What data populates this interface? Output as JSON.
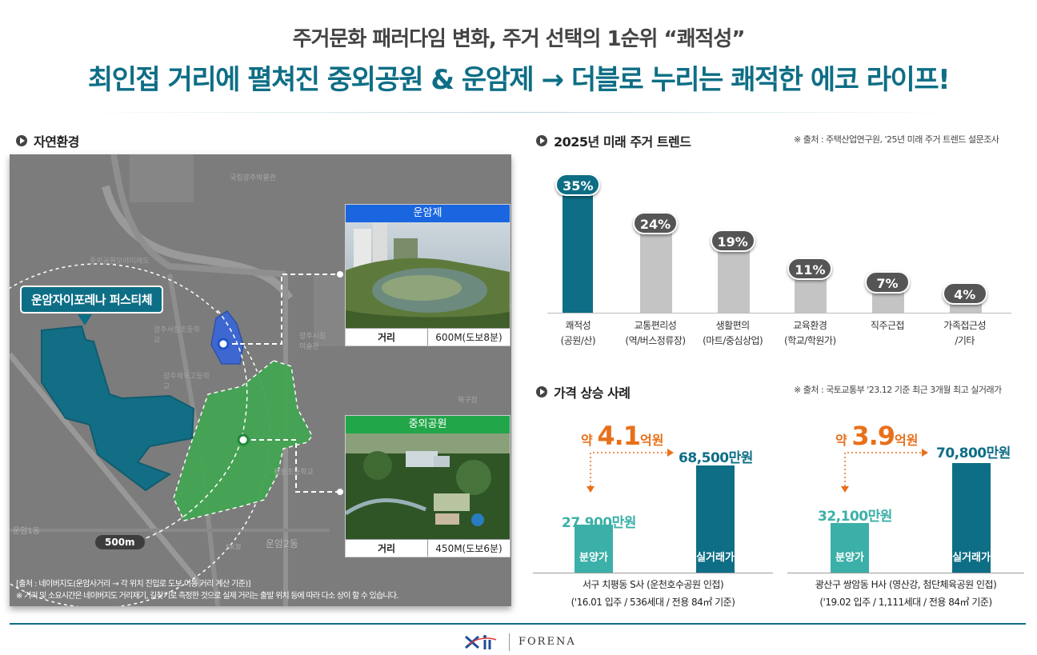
{
  "header": {
    "subtitle": "주거문화 패러다임 변화, 주거 선택의 1순위 “쾌적성”",
    "title": "최인접 거리에 펼쳐진 중외공원 & 운암제 → 더블로 누리는 쾌적한 에코 라이프!"
  },
  "nature": {
    "heading": "자연환경",
    "site_label": "운암자이포레나 퍼스티체",
    "radius_label": "500m",
    "photos": [
      {
        "title": "운암제",
        "dist_label": "거리",
        "dist_value": "600M(도보8분)",
        "color": "#1a66e0"
      },
      {
        "title": "중외공원",
        "dist_label": "거리",
        "dist_value": "450M(도보6분)",
        "color": "#22a64a"
      }
    ],
    "map_labels": [
      "국립광주박물관",
      "중외공원모야미래도",
      "광주체육고등학교",
      "광주서림초등학교",
      "운암2동",
      "SK뷰",
      "용봉초등학교",
      "북구청",
      "광주시립미술관",
      "운암1동"
    ],
    "note1": "[출처 : 네이버지도(운암사거리 → 각 위치 진입로 도보 이동 거리 계산 기준)]",
    "note2": "※ 거리 및 소요시간은 네이버지도 거리재기, 길찾기로 측정한 것으로 실제 거리는 출발 위치 등에 따라 다소 상이 할 수 있습니다."
  },
  "trend": {
    "heading": "2025년 미래 주거 트렌드",
    "source": "※ 출처 : 주택산업연구원, '25년 미래 주거 트렌드 설문조사"
  },
  "chart_data": {
    "type": "bar",
    "categories": [
      "쾌적성\n(공원/산)",
      "교통편리성\n(역/버스정류장)",
      "생활편의\n(마트/중심상업)",
      "교육환경\n(학교/학원가)",
      "직주근접",
      "가족접근성\n/기타"
    ],
    "values": [
      35,
      24,
      19,
      11,
      7,
      4
    ],
    "value_labels": [
      "35%",
      "24%",
      "19%",
      "11%",
      "7%",
      "4%"
    ],
    "highlight_color": "#0e6e85",
    "other_color": "#c4c4c4",
    "ylim": [
      0,
      40
    ]
  },
  "price": {
    "heading": "가격 상승 사례",
    "source": "※ 출처 : 국토교통부 '23.12 기준 최근 3개월 최고 실거래가",
    "cases": [
      {
        "increase_prefix": "약",
        "increase": "4.1",
        "increase_unit": "억원",
        "before_value": "27,900만원",
        "before_label": "분양가",
        "after_value": "68,500만원",
        "after_label": "실거래가",
        "name": "서구 치평동 S사 (운천호수공원 인접)",
        "detail": "('16.01 입주 / 536세대 / 전용 84㎡ 기준)",
        "before": 27900,
        "after": 68500
      },
      {
        "increase_prefix": "약",
        "increase": "3.9",
        "increase_unit": "억원",
        "before_value": "32,100만원",
        "before_label": "분양가",
        "after_value": "70,800만원",
        "after_label": "실거래가",
        "name": "광산구 쌍암동 H사 (영산강, 첨단체육공원 인접)",
        "detail": "('19.02 입주 / 1,111세대 / 전용 84㎡ 기준)",
        "before": 32100,
        "after": 70800
      }
    ]
  },
  "footer": {
    "brand": "FORENA"
  }
}
